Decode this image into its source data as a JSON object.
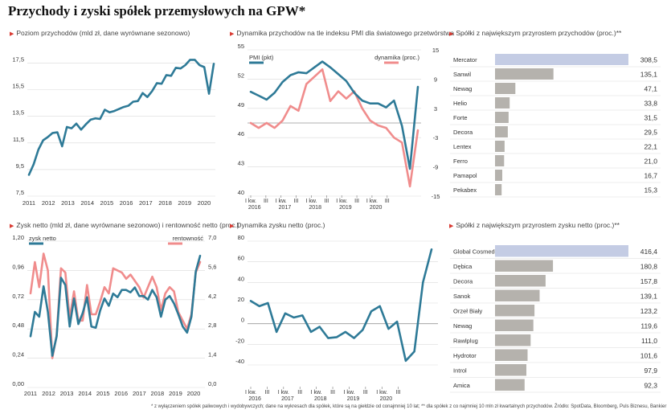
{
  "title": "Przychody i zyski spółek przemysłowych na GPW*",
  "footnote": "* z wyłączeniem spółek paliwowych i wydobywczych; dane na wykresach dla spółek, które są na giełdzie od conajmniej 10 lat; ** dla spółek z co najmniej 10 mln zł kwartalnych przychodów. Źródło: SpotData, Bloomberg, Puls Biznesu, Bankier",
  "colors": {
    "teal": "#2e7a97",
    "pink": "#f08c8c",
    "lavender": "#c4cce4",
    "gray": "#b5b2ad",
    "grid": "#d9d9d9",
    "accent": "#d93a32"
  },
  "chart_data": [
    {
      "id": "revenue",
      "type": "line",
      "title": "Poziom przychodów (mld zł, dane wyrównane sezonowo)",
      "xlabels": [
        "2011",
        "2012",
        "2013",
        "2014",
        "2015",
        "2016",
        "2017",
        "2018",
        "2019",
        "2020"
      ],
      "ylim": [
        7.5,
        18.5
      ],
      "yticks": [
        7.5,
        9.5,
        11.5,
        13.5,
        15.5,
        17.5
      ],
      "series": [
        {
          "values": [
            9.1,
            9.9,
            11.0,
            11.7,
            11.95,
            12.25,
            12.3,
            11.25,
            12.7,
            12.6,
            12.95,
            12.5,
            12.9,
            13.25,
            13.35,
            13.3,
            14.0,
            13.8,
            13.9,
            14.05,
            14.2,
            14.3,
            14.6,
            14.65,
            15.25,
            14.95,
            15.4,
            16.0,
            15.95,
            16.6,
            16.55,
            17.15,
            17.1,
            17.35,
            17.75,
            17.75,
            17.35,
            17.2,
            15.2,
            17.45
          ]
        }
      ]
    },
    {
      "id": "pmi",
      "type": "line",
      "title": "Dynamika przychodów na tle indeksu PMI dla światowego przetwórstwa",
      "legend": [
        "PMI (pkt)",
        "dynamika (proc.)"
      ],
      "xlabels": [
        "I kw.",
        "III",
        "I kw.",
        "III",
        "I kw.",
        "III",
        "I kw.",
        "III",
        "I kw.",
        "III"
      ],
      "years": [
        "2016",
        "2017",
        "2018",
        "2019",
        "2020"
      ],
      "ylim_left": [
        40,
        55
      ],
      "yticks_left": [
        40,
        43,
        46,
        49,
        52,
        55
      ],
      "ylim_right": [
        -15,
        15
      ],
      "yticks_right": [
        15,
        9,
        3,
        -3,
        -9,
        -15
      ],
      "series": [
        {
          "name": "PMI (pkt)",
          "axis": "left",
          "values": [
            50.7,
            50.3,
            49.9,
            50.6,
            51.7,
            52.4,
            52.7,
            52.6,
            53.2,
            53.8,
            53.2,
            52.5,
            51.8,
            50.6,
            49.8,
            49.5,
            49.5,
            49.1,
            49.8,
            47.2,
            42.8,
            51.2
          ]
        },
        {
          "name": "dynamika (proc.)",
          "axis": "right",
          "values": [
            0.0,
            -1.0,
            0.0,
            -1.0,
            0.5,
            3.5,
            2.5,
            8.0,
            9.5,
            11.0,
            4.5,
            6.5,
            5.0,
            6.5,
            3.0,
            0.5,
            -0.5,
            -1.0,
            -3.0,
            -4.0,
            -13.0,
            -1.5
          ]
        }
      ]
    },
    {
      "id": "rev-growth",
      "type": "bar",
      "title": "Spółki z największym przyrostem przychodów (proc.)**",
      "categories": [
        "Mercator",
        "Sanwil",
        "Newag",
        "Helio",
        "Forte",
        "Decora",
        "Lentex",
        "Ferro",
        "Pamapol",
        "Pekabex"
      ],
      "values": [
        308.5,
        135.1,
        47.1,
        33.8,
        31.5,
        29.5,
        22.1,
        21.0,
        16.7,
        15.3
      ],
      "labels": [
        "308,5",
        "135,1",
        "47,1",
        "33,8",
        "31,5",
        "29,5",
        "22,1",
        "21,0",
        "16,7",
        "15,3"
      ],
      "xlim": [
        0,
        308.5
      ]
    },
    {
      "id": "profit",
      "type": "line",
      "title": "Zysk netto (mld zł, dane wyrównane sezonowo) i rentowność netto (proc.)",
      "legend": [
        "zysk netto",
        "rentowność"
      ],
      "xlabels": [
        "2011",
        "2012",
        "2013",
        "2014",
        "2015",
        "2016",
        "2017",
        "2018",
        "2019",
        "2020"
      ],
      "ylim_left": [
        0,
        1.2
      ],
      "yticks_left": [
        "0,00",
        "0,24",
        "0,48",
        "0,72",
        "0,96",
        "1,20"
      ],
      "yticks_left_values": [
        0,
        0.24,
        0.48,
        0.72,
        0.96,
        1.2
      ],
      "ylim_right": [
        0,
        7
      ],
      "yticks_right": [
        "0,0",
        "1,4",
        "2,8",
        "4,2",
        "5,6",
        "7,0"
      ],
      "yticks_right_values": [
        0,
        1.4,
        2.8,
        4.2,
        5.6,
        7.0
      ],
      "series": [
        {
          "name": "zysk netto",
          "axis": "left",
          "values": [
            0.42,
            0.62,
            0.58,
            0.83,
            0.62,
            0.26,
            0.42,
            0.9,
            0.84,
            0.5,
            0.73,
            0.52,
            0.61,
            0.74,
            0.5,
            0.49,
            0.63,
            0.73,
            0.67,
            0.77,
            0.74,
            0.8,
            0.8,
            0.78,
            0.82,
            0.75,
            0.75,
            0.72,
            0.8,
            0.74,
            0.58,
            0.72,
            0.75,
            0.69,
            0.6,
            0.5,
            0.45,
            0.58,
            0.95,
            1.08
          ]
        },
        {
          "name": "rentowność",
          "axis": "right",
          "values": [
            4.5,
            6.0,
            4.8,
            6.4,
            5.6,
            1.4,
            2.5,
            5.7,
            5.5,
            3.3,
            4.6,
            3.2,
            3.2,
            4.9,
            3.5,
            3.5,
            4.1,
            4.8,
            4.5,
            5.7,
            5.6,
            5.5,
            5.2,
            5.4,
            5.1,
            4.8,
            4.3,
            4.8,
            5.3,
            4.8,
            3.7,
            4.5,
            4.8,
            4.6,
            3.6,
            3.2,
            2.8,
            3.5,
            5.5,
            6.0
          ]
        }
      ]
    },
    {
      "id": "profit-growth",
      "type": "line",
      "title": "Dynamika zysku netto (proc.)",
      "xlabels": [
        "I kw.",
        "III",
        "I kw.",
        "III",
        "I kw.",
        "III",
        "I kw.",
        "III",
        "I kw.",
        "III"
      ],
      "years": [
        "2016",
        "2017",
        "2018",
        "2019",
        "2020"
      ],
      "ylim": [
        -40,
        80
      ],
      "yticks": [
        -40,
        -20,
        0,
        20,
        40,
        60,
        80
      ],
      "series": [
        {
          "values": [
            22,
            17,
            20,
            -8,
            10,
            6,
            8,
            -8,
            -3,
            -14,
            -13,
            -8,
            -14,
            -6,
            12,
            17,
            -5,
            2,
            -36,
            -27,
            40,
            72
          ]
        }
      ]
    },
    {
      "id": "profit-top",
      "type": "bar",
      "title": "Spółki z największym przyrostem zysku netto (proc.)**",
      "categories": [
        "Global Cosmed",
        "Dębica",
        "Decora",
        "Sanok",
        "Orzeł Biały",
        "Newag",
        "Rawlplug",
        "Hydrotor",
        "Introl",
        "Amica"
      ],
      "values": [
        416.4,
        180.8,
        157.8,
        139.1,
        123.2,
        119.6,
        111.0,
        101.6,
        97.9,
        92.3
      ],
      "labels": [
        "416,4",
        "180,8",
        "157,8",
        "139,1",
        "123,2",
        "119,6",
        "111,0",
        "101,6",
        "97,9",
        "92,3"
      ],
      "xlim": [
        0,
        416.4
      ]
    }
  ]
}
